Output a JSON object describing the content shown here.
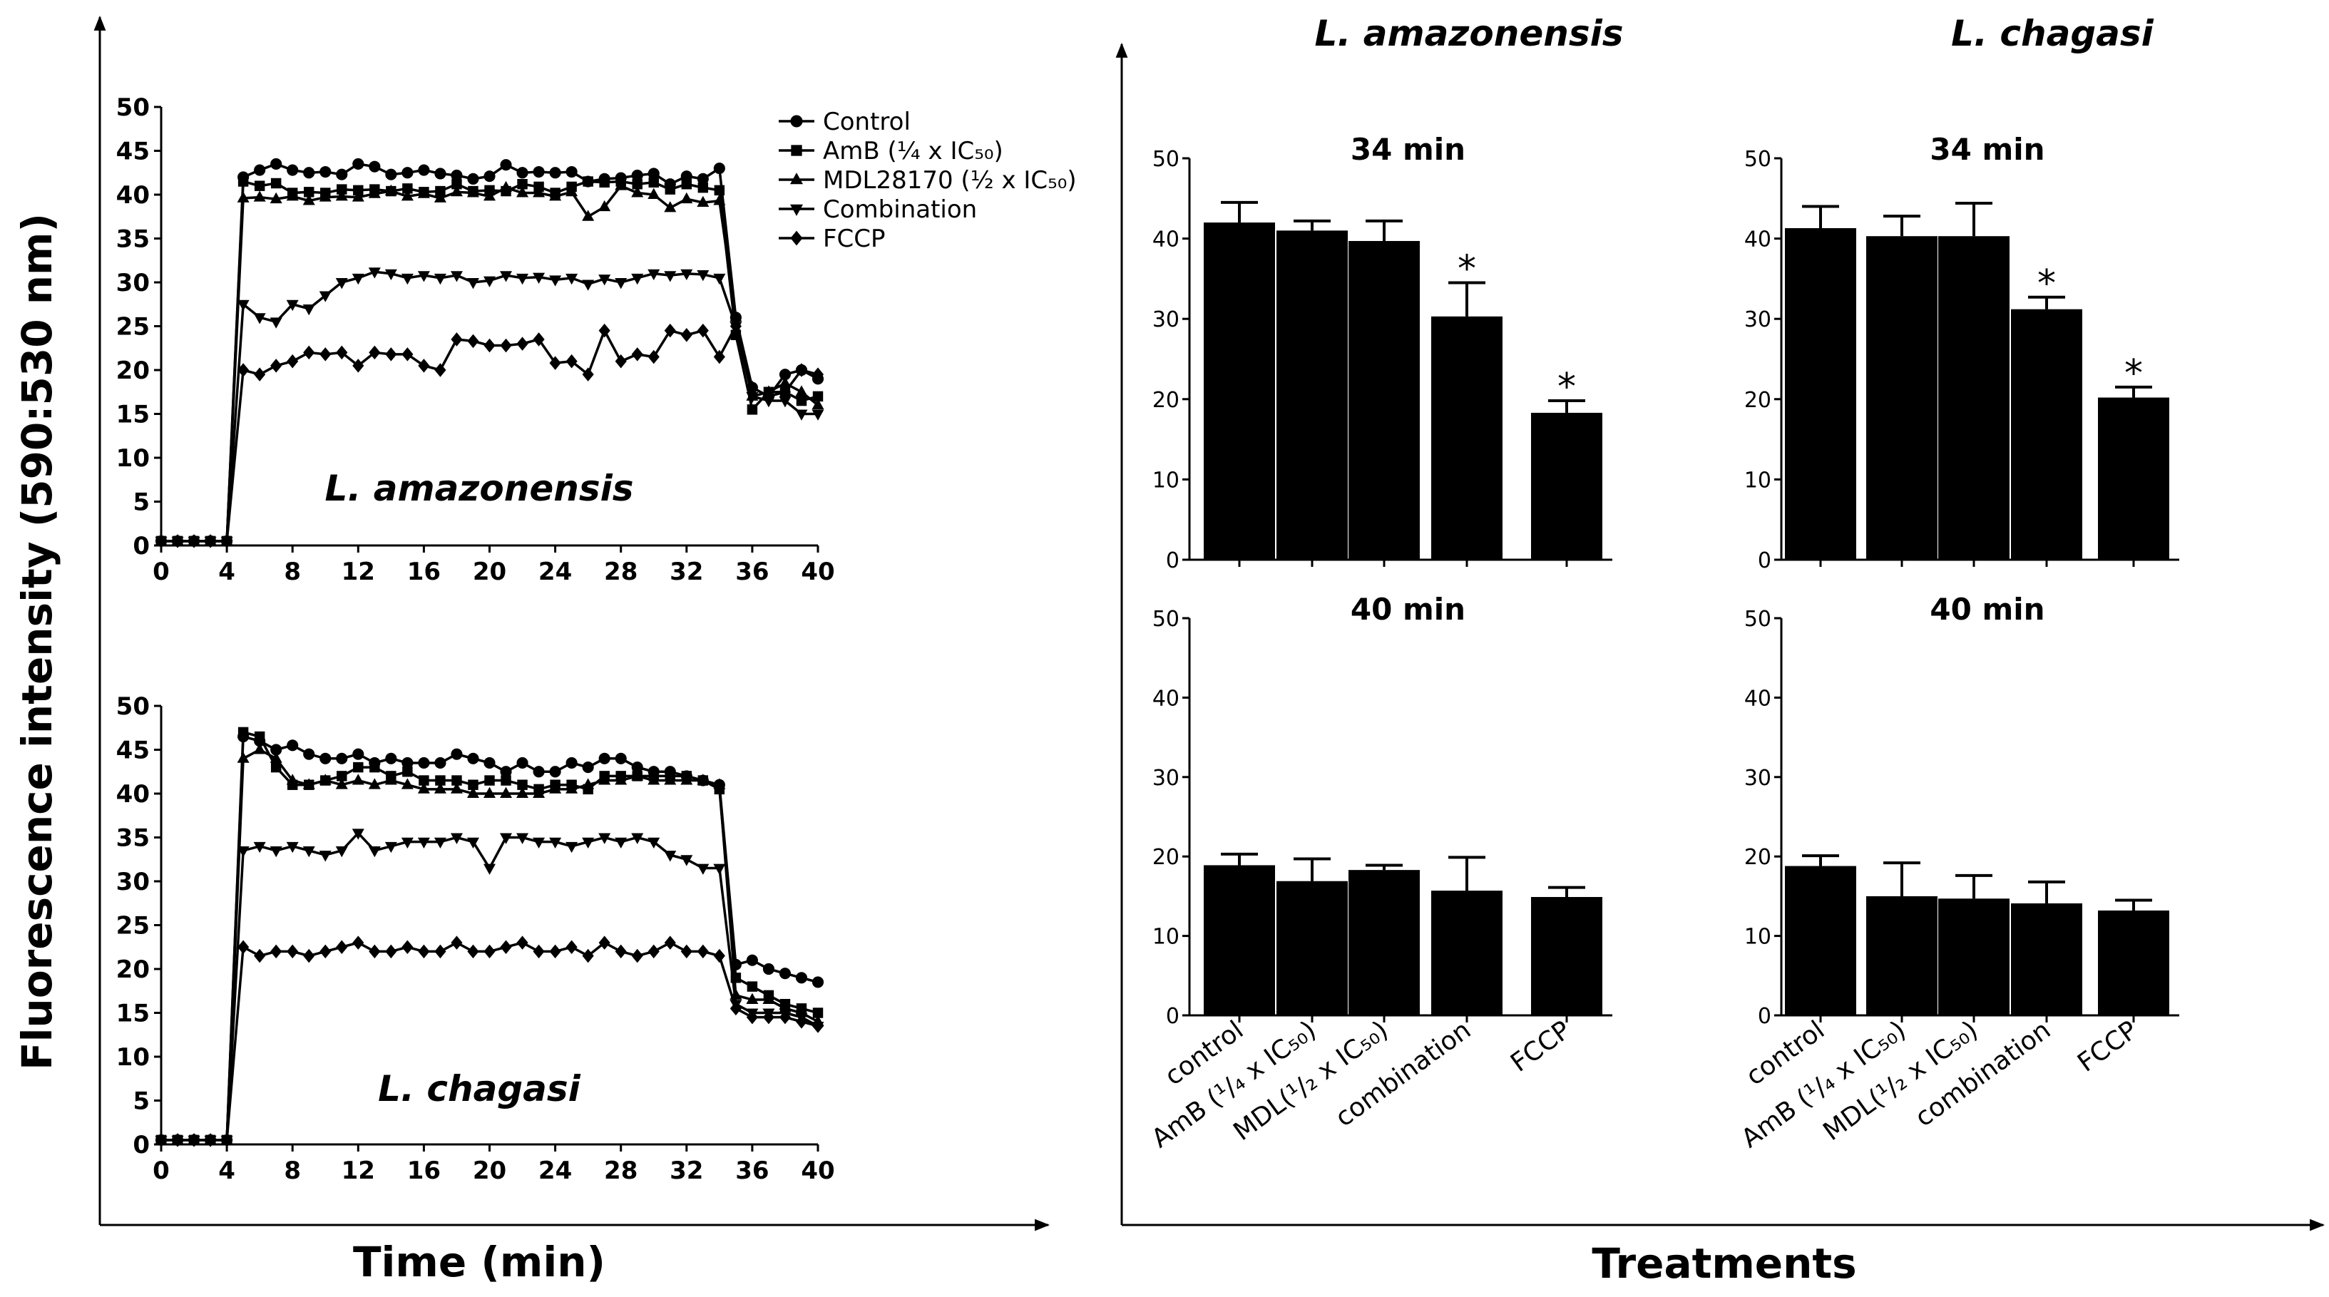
{
  "figure": {
    "y_label": "Fluorescence intensity (590:530 nm)",
    "x_label_left": "Time (min)",
    "x_label_right": "Treatments",
    "col_title_left": "L. amazonensis",
    "col_title_right": "L. chagasi",
    "star_symbol": "*",
    "colors": {
      "ink": "#000000",
      "background": "#ffffff"
    }
  },
  "chart_data": [
    {
      "id": "line-amazonensis",
      "type": "line",
      "title": "L. amazonensis",
      "xlabel": "Time (min)",
      "ylabel": "Fluorescence intensity (590:530 nm)",
      "xlim": [
        0,
        40
      ],
      "ylim": [
        0,
        50
      ],
      "x_ticks": [
        0,
        4,
        8,
        12,
        16,
        20,
        24,
        28,
        32,
        36,
        40
      ],
      "y_ticks": [
        0,
        5,
        10,
        15,
        20,
        25,
        30,
        35,
        40,
        45,
        50
      ],
      "legend": [
        "Control",
        "AmB (¼ x IC₅₀)",
        "MDL28170 (½ x IC₅₀)",
        "Combination",
        "FCCP"
      ],
      "series": [
        {
          "name": "Control",
          "marker": "circle",
          "x": [
            0,
            1,
            2,
            3,
            4,
            5,
            6,
            7,
            8,
            9,
            10,
            11,
            12,
            13,
            14,
            15,
            16,
            17,
            18,
            19,
            20,
            21,
            22,
            23,
            24,
            25,
            26,
            27,
            28,
            29,
            30,
            31,
            32,
            33,
            34,
            35,
            36,
            37,
            38,
            39,
            40
          ],
          "y": [
            0.5,
            0.5,
            0.5,
            0.5,
            0.5,
            42,
            42.8,
            43.5,
            42.8,
            42.5,
            42.6,
            42.3,
            43.5,
            43.2,
            42.3,
            42.5,
            42.8,
            42.4,
            42.2,
            41.8,
            42.1,
            43.4,
            42.5,
            42.6,
            42.5,
            42.6,
            41.5,
            41.8,
            41.9,
            42.2,
            42.4,
            41.2,
            42.1,
            41.8,
            43,
            26,
            18,
            17,
            19.5,
            20,
            19
          ]
        },
        {
          "name": "AmB (¼ x IC₅₀)",
          "marker": "square",
          "x": [
            0,
            1,
            2,
            3,
            4,
            5,
            6,
            7,
            8,
            9,
            10,
            11,
            12,
            13,
            14,
            15,
            16,
            17,
            18,
            19,
            20,
            21,
            22,
            23,
            24,
            25,
            26,
            27,
            28,
            29,
            30,
            31,
            32,
            33,
            34,
            35,
            36,
            37,
            38,
            39,
            40
          ],
          "y": [
            0.5,
            0.5,
            0.5,
            0.5,
            0.5,
            41.5,
            41,
            41.3,
            40.2,
            40.3,
            40.2,
            40.6,
            40.5,
            40.6,
            40.4,
            40.7,
            40.3,
            40.4,
            41.2,
            40.4,
            40.5,
            40.4,
            41.2,
            40.9,
            40.2,
            40.9,
            41.5,
            41.4,
            41.5,
            41.2,
            41.4,
            40.6,
            41.2,
            40.8,
            40.5,
            24,
            15.5,
            17.5,
            17.5,
            16.5,
            17
          ]
        },
        {
          "name": "MDL28170 (½ x IC₅₀)",
          "marker": "triangle-up",
          "x": [
            0,
            1,
            2,
            3,
            4,
            5,
            6,
            7,
            8,
            9,
            10,
            11,
            12,
            13,
            14,
            15,
            16,
            17,
            18,
            19,
            20,
            21,
            22,
            23,
            24,
            25,
            26,
            27,
            28,
            29,
            30,
            31,
            32,
            33,
            34,
            35,
            36,
            37,
            38,
            39,
            40
          ],
          "y": [
            0.5,
            0.5,
            0.5,
            0.5,
            0.5,
            39.6,
            39.7,
            39.5,
            39.8,
            39.3,
            39.7,
            39.8,
            39.7,
            40.1,
            40.4,
            39.8,
            40.1,
            39.6,
            40.3,
            40.2,
            39.8,
            40.8,
            40.2,
            40.2,
            39.8,
            40.3,
            37.5,
            38.6,
            41,
            40.2,
            40,
            38.5,
            39.5,
            39.1,
            39.3,
            26,
            17,
            17.5,
            18.5,
            17.5,
            16
          ]
        },
        {
          "name": "Combination",
          "marker": "triangle-down",
          "x": [
            0,
            1,
            2,
            3,
            4,
            5,
            6,
            7,
            8,
            9,
            10,
            11,
            12,
            13,
            14,
            15,
            16,
            17,
            18,
            19,
            20,
            21,
            22,
            23,
            24,
            25,
            26,
            27,
            28,
            29,
            30,
            31,
            32,
            33,
            34,
            35,
            36,
            37,
            38,
            39,
            40
          ],
          "y": [
            0.5,
            0.5,
            0.5,
            0.5,
            0.5,
            27.5,
            26,
            25.5,
            27.5,
            27,
            28.5,
            30,
            30.5,
            31.2,
            31,
            30.5,
            30.8,
            30.5,
            30.8,
            30,
            30.2,
            30.8,
            30.5,
            30.6,
            30.3,
            30.5,
            29.8,
            30.4,
            30,
            30.5,
            31,
            30.8,
            31,
            30.9,
            30.5,
            25,
            17,
            16.5,
            16.5,
            15,
            15
          ]
        },
        {
          "name": "FCCP",
          "marker": "diamond",
          "x": [
            0,
            1,
            2,
            3,
            4,
            5,
            6,
            7,
            8,
            9,
            10,
            11,
            12,
            13,
            14,
            15,
            16,
            17,
            18,
            19,
            20,
            21,
            22,
            23,
            24,
            25,
            26,
            27,
            28,
            29,
            30,
            31,
            32,
            33,
            34,
            35,
            36,
            37,
            38,
            39,
            40
          ],
          "y": [
            0.5,
            0.5,
            0.5,
            0.5,
            0.5,
            20,
            19.5,
            20.5,
            21,
            22,
            21.8,
            22,
            20.5,
            22,
            21.8,
            21.8,
            20.5,
            20,
            23.5,
            23.3,
            22.8,
            22.8,
            23,
            23.5,
            20.8,
            21,
            19.5,
            24.5,
            21,
            21.8,
            21.5,
            24.5,
            24,
            24.5,
            21.5,
            25,
            18,
            17,
            17.5,
            20,
            19.5
          ]
        }
      ]
    },
    {
      "id": "line-chagasi",
      "type": "line",
      "title": "L. chagasi",
      "xlabel": "Time (min)",
      "ylabel": "Fluorescence intensity (590:530 nm)",
      "xlim": [
        0,
        40
      ],
      "ylim": [
        0,
        50
      ],
      "x_ticks": [
        0,
        4,
        8,
        12,
        16,
        20,
        24,
        28,
        32,
        36,
        40
      ],
      "y_ticks": [
        0,
        5,
        10,
        15,
        20,
        25,
        30,
        35,
        40,
        45,
        50
      ],
      "series": [
        {
          "name": "Control",
          "marker": "circle",
          "x": [
            0,
            1,
            2,
            3,
            4,
            5,
            6,
            7,
            8,
            9,
            10,
            11,
            12,
            13,
            14,
            15,
            16,
            17,
            18,
            19,
            20,
            21,
            22,
            23,
            24,
            25,
            26,
            27,
            28,
            29,
            30,
            31,
            32,
            33,
            34,
            35,
            36,
            37,
            38,
            39,
            40
          ],
          "y": [
            0.5,
            0.5,
            0.5,
            0.5,
            0.5,
            46.5,
            46,
            45,
            45.5,
            44.5,
            44,
            44,
            44.5,
            43.5,
            44,
            43.5,
            43.5,
            43.5,
            44.5,
            44,
            43.5,
            42.5,
            43.5,
            42.5,
            42.5,
            43.5,
            43,
            44,
            44,
            43,
            42.5,
            42.5,
            42,
            41.5,
            41,
            20.5,
            21,
            20,
            19.5,
            19,
            18.5
          ]
        },
        {
          "name": "AmB (¼ x IC₅₀)",
          "marker": "square",
          "x": [
            0,
            1,
            2,
            3,
            4,
            5,
            6,
            7,
            8,
            9,
            10,
            11,
            12,
            13,
            14,
            15,
            16,
            17,
            18,
            19,
            20,
            21,
            22,
            23,
            24,
            25,
            26,
            27,
            28,
            29,
            30,
            31,
            32,
            33,
            34,
            35,
            36,
            37,
            38,
            39,
            40
          ],
          "y": [
            0.5,
            0.5,
            0.5,
            0.5,
            0.5,
            47,
            46.5,
            43,
            41,
            41,
            41.5,
            42,
            43,
            43,
            42,
            42.5,
            41.5,
            41.5,
            41.5,
            41,
            41.5,
            41.5,
            41,
            40.5,
            41,
            41,
            40.5,
            42,
            42,
            42,
            42,
            42,
            42,
            41.5,
            40.5,
            19,
            18,
            17,
            16,
            15.5,
            15
          ]
        },
        {
          "name": "MDL28170 (½ x IC₅₀)",
          "marker": "triangle-up",
          "x": [
            0,
            1,
            2,
            3,
            4,
            5,
            6,
            7,
            8,
            9,
            10,
            11,
            12,
            13,
            14,
            15,
            16,
            17,
            18,
            19,
            20,
            21,
            22,
            23,
            24,
            25,
            26,
            27,
            28,
            29,
            30,
            31,
            32,
            33,
            34,
            35,
            36,
            37,
            38,
            39,
            40
          ],
          "y": [
            0.5,
            0.5,
            0.5,
            0.5,
            0.5,
            44,
            45,
            44,
            41.5,
            41,
            41.5,
            41,
            41.5,
            41,
            41.5,
            41,
            40.5,
            40.5,
            40.5,
            40,
            40,
            40,
            40,
            40,
            40.5,
            40.5,
            41,
            41.5,
            41.5,
            42,
            41.5,
            41.5,
            41.5,
            41.5,
            41,
            17,
            16.5,
            16.5,
            15.5,
            15,
            14
          ]
        },
        {
          "name": "Combination",
          "marker": "triangle-down",
          "x": [
            0,
            1,
            2,
            3,
            4,
            5,
            6,
            7,
            8,
            9,
            10,
            11,
            12,
            13,
            14,
            15,
            16,
            17,
            18,
            19,
            20,
            21,
            22,
            23,
            24,
            25,
            26,
            27,
            28,
            29,
            30,
            31,
            32,
            33,
            34,
            35,
            36,
            37,
            38,
            39,
            40
          ],
          "y": [
            0.5,
            0.5,
            0.5,
            0.5,
            0.5,
            33.5,
            34,
            33.5,
            34,
            33.5,
            33,
            33.5,
            35.5,
            33.5,
            34,
            34.5,
            34.5,
            34.5,
            35,
            34.5,
            31.5,
            35,
            35,
            34.5,
            34.5,
            34,
            34.5,
            35,
            34.5,
            35,
            34.5,
            33,
            32.5,
            31.5,
            31.5,
            16,
            15,
            15,
            15,
            14.5,
            13.5
          ]
        },
        {
          "name": "FCCP",
          "marker": "diamond",
          "x": [
            0,
            1,
            2,
            3,
            4,
            5,
            6,
            7,
            8,
            9,
            10,
            11,
            12,
            13,
            14,
            15,
            16,
            17,
            18,
            19,
            20,
            21,
            22,
            23,
            24,
            25,
            26,
            27,
            28,
            29,
            30,
            31,
            32,
            33,
            34,
            35,
            36,
            37,
            38,
            39,
            40
          ],
          "y": [
            0.5,
            0.5,
            0.5,
            0.5,
            0.5,
            22.5,
            21.5,
            22,
            22,
            21.5,
            22,
            22.5,
            23,
            22,
            22,
            22.5,
            22,
            22,
            23,
            22,
            22,
            22.5,
            23,
            22,
            22,
            22.5,
            21.5,
            23,
            22,
            21.5,
            22,
            23,
            22,
            22,
            21.5,
            15.5,
            14.5,
            14.5,
            14.5,
            14,
            13.5
          ]
        }
      ]
    },
    {
      "id": "bar-amaz-34",
      "type": "bar",
      "title": "34 min",
      "xlabel": "Treatments",
      "ylabel": "Fluorescence intensity (590:530 nm)",
      "ylim": [
        0,
        50
      ],
      "y_ticks": [
        0,
        10,
        20,
        30,
        40,
        50
      ],
      "categories": [
        "control",
        "AmB (¹/₄ x IC₅₀)",
        "MDL(¹/₂ x IC₅₀)",
        "combination",
        "FCCP"
      ],
      "values": [
        42,
        41,
        39.7,
        30.3,
        18.3
      ],
      "errors": [
        2.5,
        1.2,
        2.5,
        4.2,
        1.5
      ],
      "significant": [
        false,
        false,
        false,
        true,
        true
      ]
    },
    {
      "id": "bar-chag-34",
      "type": "bar",
      "title": "34 min",
      "xlabel": "Treatments",
      "ylabel": "Fluorescence intensity (590:530 nm)",
      "ylim": [
        0,
        50
      ],
      "y_ticks": [
        0,
        10,
        20,
        30,
        40,
        50
      ],
      "categories": [
        "control",
        "AmB (¹/₄ x IC₅₀)",
        "MDL(¹/₂ x IC₅₀)",
        "combination",
        "FCCP"
      ],
      "values": [
        41.3,
        40.3,
        40.3,
        31.2,
        20.2
      ],
      "errors": [
        2.7,
        2.5,
        4.1,
        1.5,
        1.3
      ],
      "significant": [
        false,
        false,
        false,
        true,
        true
      ]
    },
    {
      "id": "bar-amaz-40",
      "type": "bar",
      "title": "40 min",
      "xlabel": "Treatments",
      "ylabel": "Fluorescence intensity (590:530 nm)",
      "ylim": [
        0,
        50
      ],
      "y_ticks": [
        0,
        10,
        20,
        30,
        40,
        50
      ],
      "categories": [
        "control",
        "AmB (¹/₄ x IC₅₀)",
        "MDL(¹/₂ x IC₅₀)",
        "combination",
        "FCCP"
      ],
      "values": [
        18.9,
        16.9,
        18.3,
        15.7,
        14.9
      ],
      "errors": [
        1.4,
        2.8,
        0.6,
        4.2,
        1.2
      ],
      "significant": [
        false,
        false,
        false,
        false,
        false
      ]
    },
    {
      "id": "bar-chag-40",
      "type": "bar",
      "title": "40 min",
      "xlabel": "Treatments",
      "ylabel": "Fluorescence intensity (590:530 nm)",
      "ylim": [
        0,
        50
      ],
      "y_ticks": [
        0,
        10,
        20,
        30,
        40,
        50
      ],
      "categories": [
        "control",
        "AmB (¹/₄ x IC₅₀)",
        "MDL(¹/₂ x IC₅₀)",
        "combination",
        "FCCP"
      ],
      "values": [
        18.8,
        15,
        14.7,
        14.1,
        13.2
      ],
      "errors": [
        1.3,
        4.2,
        2.9,
        2.7,
        1.3
      ],
      "significant": [
        false,
        false,
        false,
        false,
        false
      ]
    }
  ]
}
